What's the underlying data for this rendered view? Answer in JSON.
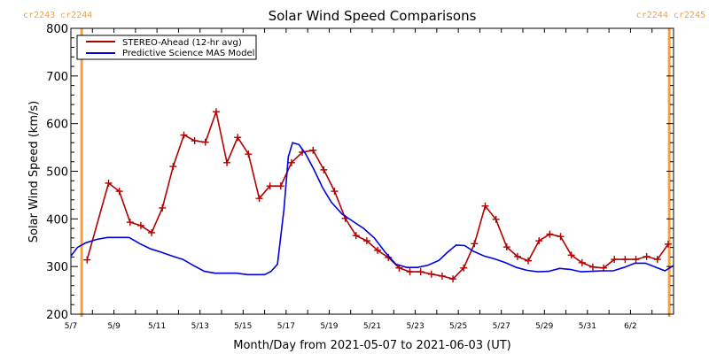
{
  "chart_data": {
    "type": "line",
    "title": "Solar Wind Speed Comparisons",
    "xlabel": "Month/Day from 2021-05-07 to 2021-06-03 (UT)",
    "ylabel": "Solar Wind Speed (km/s)",
    "xlim_days": [
      0,
      28
    ],
    "ylim": [
      200,
      800
    ],
    "y_ticks": [
      200,
      300,
      400,
      500,
      600,
      700,
      800
    ],
    "x_tick_labels": [
      "5/7",
      "5/9",
      "5/11",
      "5/13",
      "5/15",
      "5/17",
      "5/19",
      "5/21",
      "5/23",
      "5/25",
      "5/27",
      "5/29",
      "5/31",
      "6/2"
    ],
    "x_tick_days": [
      0,
      2,
      4,
      6,
      8,
      10,
      12,
      14,
      16,
      18,
      20,
      22,
      24,
      26
    ],
    "legend_position": "top-left",
    "carrington_markers": [
      {
        "day": 0.5,
        "label": "cr2243 cr2244",
        "side": "left"
      },
      {
        "day": 27.8,
        "label": "cr2244 cr2245",
        "side": "right"
      }
    ],
    "colors": {
      "stereo": "#b00000",
      "model": "#0000e0",
      "carrington": "#f5a040"
    },
    "series": [
      {
        "name": "STEREO-Ahead (12-hr avg)",
        "marker": "plus",
        "x": [
          0.75,
          1.75,
          2.25,
          2.75,
          3.25,
          3.75,
          4.25,
          4.75,
          5.25,
          5.75,
          6.25,
          6.75,
          7.25,
          7.75,
          8.25,
          8.75,
          9.25,
          9.75,
          10.25,
          10.75,
          11.25,
          11.75,
          12.25,
          12.75,
          13.25,
          13.75,
          14.25,
          14.75,
          15.25,
          15.75,
          16.25,
          16.75,
          17.25,
          17.75,
          18.25,
          18.75,
          19.25,
          19.75,
          20.25,
          20.75,
          21.25,
          21.75,
          22.25,
          22.75,
          23.25,
          23.75,
          24.25,
          24.75,
          25.25,
          25.75,
          26.25,
          26.75,
          27.25,
          27.75
        ],
        "values": [
          314,
          475,
          458,
          393,
          386,
          371,
          423,
          510,
          576,
          564,
          561,
          625,
          518,
          571,
          536,
          443,
          469,
          469,
          518,
          540,
          544,
          503,
          458,
          401,
          365,
          354,
          334,
          319,
          297,
          289,
          289,
          284,
          280,
          274,
          297,
          348,
          427,
          399,
          341,
          321,
          312,
          354,
          368,
          363,
          324,
          308,
          299,
          297,
          315,
          315,
          315,
          321,
          315,
          347
        ]
      },
      {
        "name": "Predictive Science MAS Model",
        "marker": "none",
        "x": [
          0,
          0.3,
          0.7,
          1.2,
          1.7,
          2.2,
          2.7,
          3.2,
          3.7,
          4.2,
          4.7,
          5.2,
          5.7,
          6.2,
          6.7,
          7.2,
          7.7,
          8.2,
          8.7,
          9.0,
          9.3,
          9.6,
          9.9,
          10.1,
          10.3,
          10.6,
          10.9,
          11.3,
          11.7,
          12.1,
          12.6,
          13.1,
          13.6,
          14.1,
          14.6,
          15.1,
          15.6,
          16.1,
          16.6,
          17.1,
          17.5,
          17.9,
          18.3,
          18.7,
          19.2,
          19.7,
          20.2,
          20.7,
          21.2,
          21.7,
          22.2,
          22.7,
          23.2,
          23.7,
          24.2,
          24.7,
          25.2,
          25.7,
          26.2,
          26.7,
          27.2,
          27.6,
          28.0
        ],
        "values": [
          322,
          340,
          350,
          357,
          361,
          361,
          361,
          348,
          337,
          330,
          322,
          315,
          302,
          290,
          286,
          286,
          286,
          283,
          283,
          283,
          290,
          305,
          420,
          530,
          560,
          556,
          537,
          503,
          465,
          435,
          410,
          395,
          380,
          360,
          330,
          305,
          298,
          298,
          303,
          313,
          330,
          345,
          344,
          332,
          322,
          316,
          308,
          298,
          292,
          289,
          290,
          296,
          294,
          289,
          290,
          291,
          291,
          298,
          307,
          307,
          298,
          291,
          302
        ]
      }
    ]
  }
}
